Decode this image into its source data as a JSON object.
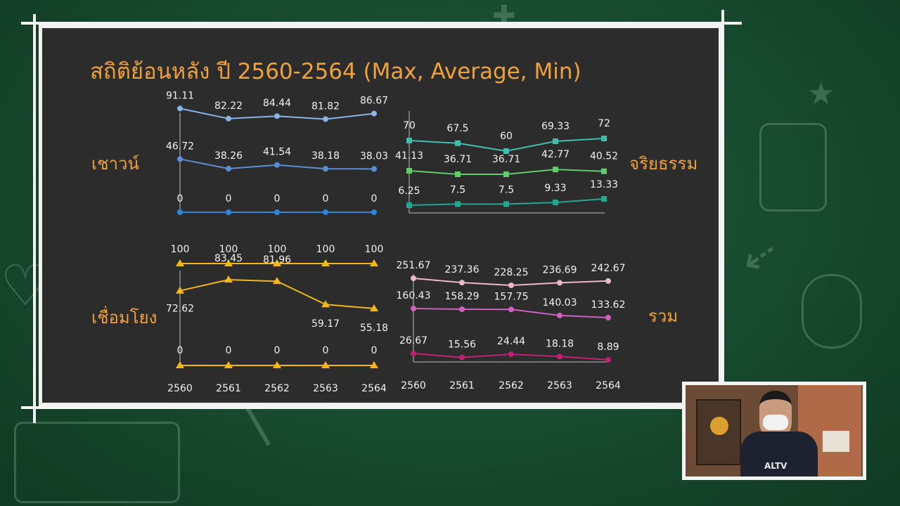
{
  "title": "สถิติย้อนหลัง ปี 2560-2564 (Max, Average, Min)",
  "colors": {
    "title": "#f0a13a",
    "board": "#2c2c2c",
    "blue_max": "#8ab4e8",
    "blue_avg": "#5a8fd8",
    "blue_min": "#2f86e0",
    "teal_max": "#3fbfb0",
    "green_avg": "#5fcf6a",
    "teal_min": "#20a890",
    "yellow": "#f2b81a",
    "pink_max": "#e8b8c8",
    "magenta_avg": "#d060c0",
    "crimson_min": "#c02070"
  },
  "chart_data": [
    {
      "type": "line",
      "label": "เชาวน์",
      "x": [
        "2560",
        "2561",
        "2562",
        "2563",
        "2564"
      ],
      "series": [
        {
          "name": "Max",
          "values": [
            91.11,
            82.22,
            84.44,
            81.82,
            86.67
          ],
          "labels": [
            "91.11",
            "82.22",
            "84.44",
            "81.82",
            "86.67"
          ]
        },
        {
          "name": "Average",
          "values": [
            46.72,
            38.26,
            41.54,
            38.18,
            38.03
          ],
          "labels": [
            "46.72",
            "38.26",
            "41.54",
            "38.18",
            "38.03"
          ]
        },
        {
          "name": "Min",
          "values": [
            0,
            0,
            0,
            0,
            0
          ],
          "labels": [
            "0",
            "0",
            "0",
            "0",
            "0"
          ]
        }
      ]
    },
    {
      "type": "line",
      "label": "จริยธรรม",
      "x": [
        "2560",
        "2561",
        "2562",
        "2563",
        "2564"
      ],
      "series": [
        {
          "name": "Max",
          "values": [
            70,
            67.5,
            60,
            69.33,
            72
          ],
          "labels": [
            "70",
            "67.5",
            "60",
            "69.33",
            "72"
          ]
        },
        {
          "name": "Average",
          "values": [
            41.13,
            36.71,
            36.71,
            42.77,
            40.52
          ],
          "labels": [
            "41.13",
            "36.71",
            "36.71",
            "42.77",
            "40.52"
          ]
        },
        {
          "name": "Min",
          "values": [
            6.25,
            7.5,
            7.5,
            9.33,
            13.33
          ],
          "labels": [
            "6.25",
            "7.5",
            "7.5",
            "9.33",
            "13.33"
          ]
        }
      ]
    },
    {
      "type": "line",
      "label": "เชื่อมโยง",
      "x": [
        "2560",
        "2561",
        "2562",
        "2563",
        "2564"
      ],
      "series": [
        {
          "name": "Max",
          "values": [
            100,
            100,
            100,
            100,
            100
          ],
          "labels": [
            "100",
            "100",
            "100",
            "100",
            "100"
          ]
        },
        {
          "name": "Average",
          "values": [
            72.62,
            83.45,
            81.96,
            59.17,
            55.18
          ],
          "labels": [
            "72.62",
            "83.45",
            "81.96",
            "59.17",
            "55.18"
          ]
        },
        {
          "name": "Min",
          "values": [
            0,
            0,
            0,
            0,
            0
          ],
          "labels": [
            "0",
            "0",
            "0",
            "0",
            "0"
          ]
        }
      ]
    },
    {
      "type": "line",
      "label": "รวม",
      "x": [
        "2560",
        "2561",
        "2562",
        "2563",
        "2564"
      ],
      "series": [
        {
          "name": "Max",
          "values": [
            251.67,
            237.36,
            228.25,
            236.69,
            242.67
          ],
          "labels": [
            "251.67",
            "237.36",
            "228.25",
            "236.69",
            "242.67"
          ]
        },
        {
          "name": "Average",
          "values": [
            160.43,
            158.29,
            157.75,
            140.03,
            133.62
          ],
          "labels": [
            "160.43",
            "158.29",
            "157.75",
            "140.03",
            "133.62"
          ]
        },
        {
          "name": "Min",
          "values": [
            26.67,
            15.56,
            24.44,
            18.18,
            8.89
          ],
          "labels": [
            "26.67",
            "15.56",
            "24.44",
            "18.18",
            "8.89"
          ]
        }
      ]
    }
  ],
  "webcam": {
    "shirt_text": "ALTV"
  }
}
